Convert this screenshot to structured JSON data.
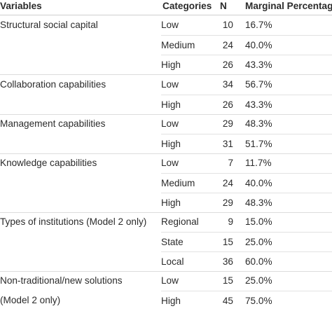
{
  "headers": {
    "variables": "Variables",
    "categories": "Categories",
    "n": "N",
    "marginal": "Marginal Percentage"
  },
  "groups": [
    {
      "variable": "Structural social capital",
      "rows": [
        {
          "category": "Low",
          "n": "10",
          "pct": "16.7%"
        },
        {
          "category": "Medium",
          "n": "24",
          "pct": "40.0%"
        },
        {
          "category": "High",
          "n": "26",
          "pct": "43.3%"
        }
      ]
    },
    {
      "variable": "Collaboration capabilities",
      "rows": [
        {
          "category": "Low",
          "n": "34",
          "pct": "56.7%"
        },
        {
          "category": "High",
          "n": "26",
          "pct": "43.3%"
        }
      ]
    },
    {
      "variable": "Management capabilities",
      "rows": [
        {
          "category": "Low",
          "n": "29",
          "pct": "48.3%"
        },
        {
          "category": "High",
          "n": "31",
          "pct": "51.7%"
        }
      ]
    },
    {
      "variable": "Knowledge capabilities",
      "rows": [
        {
          "category": "Low",
          "n": "7",
          "pct": "11.7%"
        },
        {
          "category": "Medium",
          "n": "24",
          "pct": "40.0%"
        },
        {
          "category": "High",
          "n": "29",
          "pct": "48.3%"
        }
      ]
    },
    {
      "variable": "Types of institutions (Model 2 only)",
      "rows": [
        {
          "category": "Regional",
          "n": "9",
          "pct": "15.0%"
        },
        {
          "category": "State",
          "n": "15",
          "pct": "25.0%"
        },
        {
          "category": "Local",
          "n": "36",
          "pct": "60.0%"
        }
      ]
    },
    {
      "variable": "Non-traditional/new solutions",
      "variable_line2": "(Model 2 only)",
      "rows": [
        {
          "category": "Low",
          "n": "15",
          "pct": "25.0%"
        },
        {
          "category": "High",
          "n": "45",
          "pct": "75.0%"
        }
      ]
    }
  ]
}
